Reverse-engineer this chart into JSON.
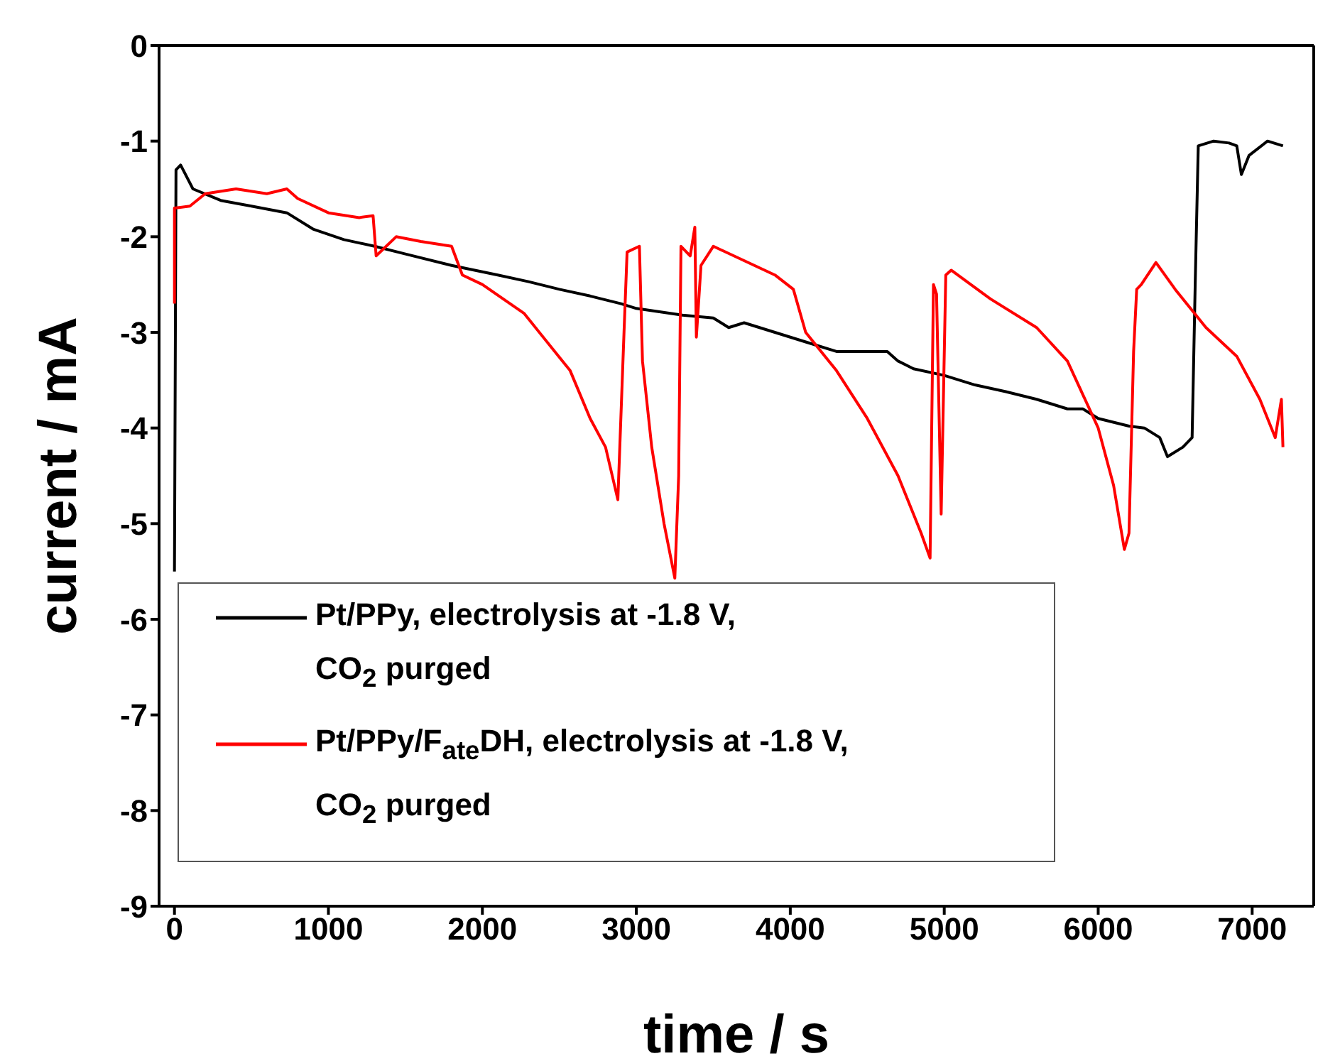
{
  "chart_data": {
    "type": "line",
    "xlabel": "time / s",
    "ylabel": "current / mA",
    "xlim": [
      -100,
      7400
    ],
    "xticks": [
      0,
      1000,
      2000,
      3000,
      4000,
      5000,
      6000,
      7000
    ],
    "ylim": [
      -9,
      0
    ],
    "yticks": [
      -9,
      -8,
      -7,
      -6,
      -5,
      -4,
      -3,
      -2,
      -1,
      0
    ],
    "grid": false,
    "legend": "bottom left",
    "marker": "none",
    "line_style": "solid",
    "series": [
      {
        "name": "Pt/PPy, electrolysis at -1.8 V,\nCO$_{2}$ purged",
        "color": "#000000",
        "x": [
          0,
          10,
          40,
          120,
          300,
          500,
          730,
          900,
          1100,
          1300,
          1500,
          1800,
          2100,
          2300,
          2500,
          2700,
          2900,
          3000,
          3300,
          3500,
          3600,
          3700,
          3900,
          4100,
          4300,
          4630,
          4700,
          4800,
          5000,
          5200,
          5400,
          5600,
          5800,
          5900,
          6000,
          6200,
          6300,
          6400,
          6450,
          6550,
          6610,
          6630,
          6650,
          6750,
          6850,
          6900,
          6930,
          6980,
          7100,
          7200
        ],
        "values": [
          -5.5,
          -1.3,
          -1.25,
          -1.5,
          -1.62,
          -1.68,
          -1.75,
          -1.92,
          -2.03,
          -2.1,
          -2.18,
          -2.3,
          -2.4,
          -2.47,
          -2.55,
          -2.62,
          -2.7,
          -2.75,
          -2.82,
          -2.85,
          -2.95,
          -2.9,
          -3.0,
          -3.1,
          -3.2,
          -3.2,
          -3.3,
          -3.38,
          -3.45,
          -3.55,
          -3.62,
          -3.7,
          -3.8,
          -3.8,
          -3.9,
          -3.98,
          -4.0,
          -4.1,
          -4.3,
          -4.2,
          -4.1,
          -2.5,
          -1.05,
          -1.0,
          -1.02,
          -1.05,
          -1.35,
          -1.15,
          -1.0,
          -1.05
        ]
      },
      {
        "name": "Pt/PPy/F$_{ate}$DH, electrolysis at -1.8 V,\nCO$_{2}$ purged",
        "color": "#ff0000",
        "x": [
          0,
          0,
          100,
          200,
          400,
          600,
          730,
          800,
          1000,
          1200,
          1290,
          1310,
          1440,
          1600,
          1800,
          1870,
          2000,
          2270,
          2570,
          2700,
          2800,
          2880,
          2920,
          2940,
          3020,
          3040,
          3100,
          3180,
          3250,
          3275,
          3290,
          3350,
          3380,
          3390,
          3420,
          3500,
          3700,
          3900,
          4020,
          4100,
          4300,
          4500,
          4700,
          4850,
          4908,
          4930,
          4950,
          4980,
          5010,
          5045,
          5300,
          5600,
          5800,
          6000,
          6100,
          6170,
          6200,
          6230,
          6250,
          6280,
          6375,
          6500,
          6700,
          6900,
          7050,
          7150,
          7190,
          7200
        ],
        "values": [
          -2.7,
          -1.7,
          -1.68,
          -1.55,
          -1.5,
          -1.55,
          -1.5,
          -1.6,
          -1.75,
          -1.8,
          -1.78,
          -2.2,
          -2.0,
          -2.05,
          -2.1,
          -2.4,
          -2.5,
          -2.8,
          -3.4,
          -3.9,
          -4.2,
          -4.75,
          -3.0,
          -2.16,
          -2.1,
          -3.3,
          -4.2,
          -5.0,
          -5.57,
          -4.5,
          -2.1,
          -2.2,
          -1.9,
          -3.05,
          -2.3,
          -2.1,
          -2.25,
          -2.4,
          -2.55,
          -3.0,
          -3.4,
          -3.9,
          -4.5,
          -5.1,
          -5.36,
          -2.5,
          -2.6,
          -4.9,
          -2.4,
          -2.35,
          -2.65,
          -2.95,
          -3.3,
          -4.0,
          -4.6,
          -5.27,
          -5.1,
          -3.2,
          -2.55,
          -2.5,
          -2.27,
          -2.55,
          -2.95,
          -3.25,
          -3.7,
          -4.1,
          -3.7,
          -4.2
        ]
      }
    ]
  }
}
